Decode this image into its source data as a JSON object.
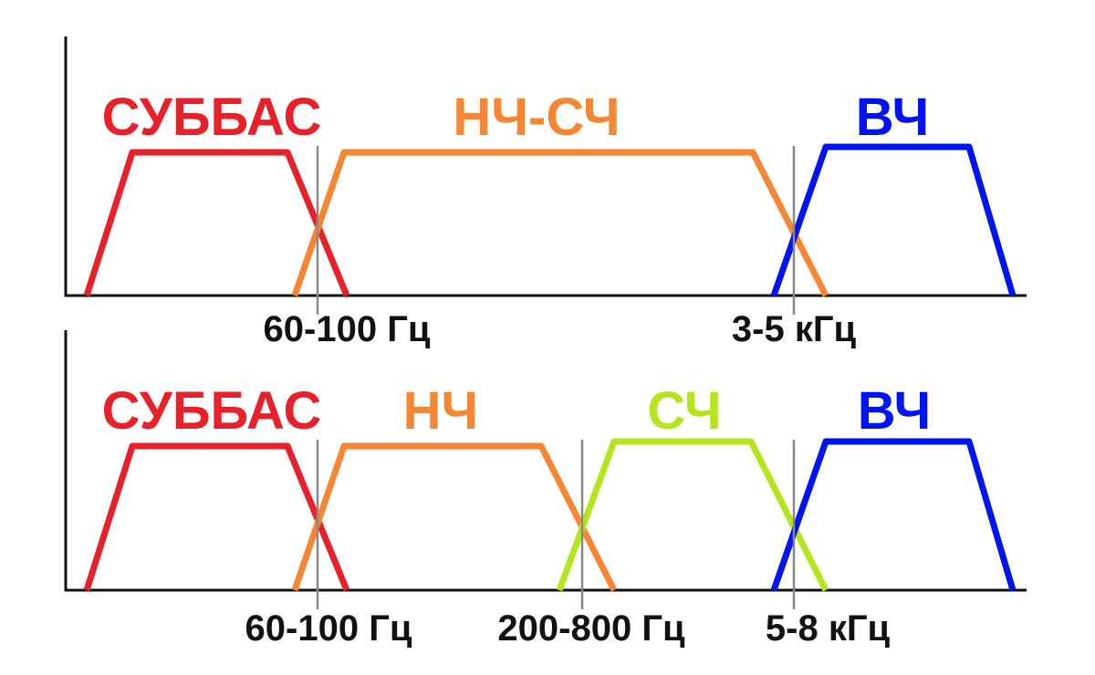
{
  "panels": [
    {
      "bands": [
        {
          "label": "СУББАС",
          "color": "#e8202a"
        },
        {
          "label": "НЧ-СЧ",
          "color": "#f58634"
        },
        {
          "label": "ВЧ",
          "color": "#0014f0"
        }
      ],
      "crossovers": [
        "60-100 Гц",
        "3-5 кГц"
      ]
    },
    {
      "bands": [
        {
          "label": "СУББАС",
          "color": "#e8202a"
        },
        {
          "label": "НЧ",
          "color": "#f58634"
        },
        {
          "label": "СЧ",
          "color": "#b5e61d"
        },
        {
          "label": "ВЧ",
          "color": "#0014f0"
        }
      ],
      "crossovers": [
        "60-100 Гц",
        "200-800 Гц",
        "5-8 кГц"
      ]
    }
  ]
}
